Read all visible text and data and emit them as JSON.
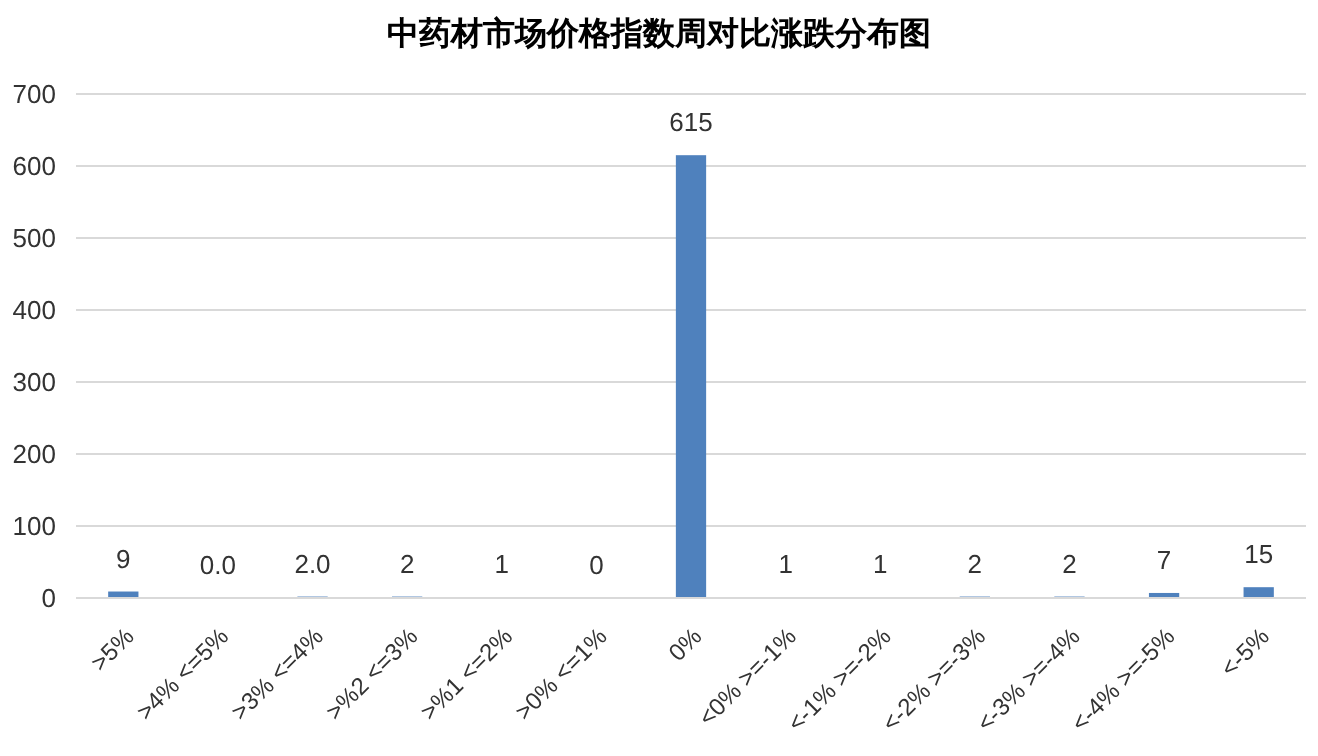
{
  "chart_data": {
    "type": "bar",
    "title": "中药材市场价格指数周对比涨跌分布图",
    "categories": [
      ">5%",
      ">4% <=5%",
      ">3% <=4%",
      ">%2 <=3%",
      ">%1 <=2%",
      ">0% <=1%",
      "0%",
      "<0% >=-1%",
      "<-1% >=-2%",
      "<-2% >=-3%",
      "<-3% >=-4%",
      "<-4% >=-5%",
      "<-5%"
    ],
    "values": [
      9,
      0,
      2,
      2,
      1,
      0,
      615,
      1,
      1,
      2,
      2,
      7,
      15
    ],
    "value_labels": [
      "9",
      "0.0",
      "2.0",
      "2",
      "1",
      "0",
      "615",
      "1",
      "1",
      "2",
      "2",
      "7",
      "15"
    ],
    "color": "#4f81bd",
    "ylim": [
      0,
      700
    ],
    "yticks": [
      0,
      100,
      200,
      300,
      400,
      500,
      600,
      700
    ],
    "grid": "y"
  }
}
